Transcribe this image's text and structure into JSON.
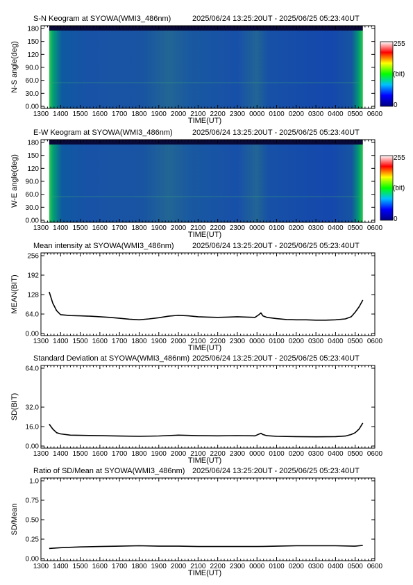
{
  "xaxis": {
    "label": "TIME(UT)",
    "ticks": [
      "1300",
      "1400",
      "1500",
      "1600",
      "1700",
      "1800",
      "1900",
      "2000",
      "2100",
      "2200",
      "2300",
      "0000",
      "0100",
      "0200",
      "0300",
      "0400",
      "0500",
      "0600"
    ]
  },
  "colorbar": {
    "max_label": "255",
    "min_label": "0",
    "unit": "(bit)"
  },
  "panels": [
    {
      "title": "S-N Keogram at SYOWA(WMI3_486nm)",
      "time_range": "2025/06/24 13:25:20UT - 2025/06/25 05:23:40UT",
      "ylabel": "N-S angle(deg)",
      "yticks": [
        "0.00",
        "30.0",
        "60.0",
        "90.0",
        "120",
        "150",
        "180"
      ]
    },
    {
      "title": "E-W Keogram at SYOWA(WMI3_486nm)",
      "time_range": "2025/06/24 13:25:20UT - 2025/06/25 05:23:40UT",
      "ylabel": "W-E angle(deg)",
      "yticks": [
        "0.00",
        "30.0",
        "60.0",
        "90.0",
        "120",
        "150",
        "180"
      ]
    },
    {
      "title": "Mean intensity at SYOWA(WMI3_486nm)",
      "time_range": "2025/06/24 13:25:20UT - 2025/06/25 05:23:40UT",
      "ylabel": "MEAN(BIT)",
      "yticks": [
        "0.00",
        "64.0",
        "128",
        "192",
        "256"
      ]
    },
    {
      "title": "Standard Deviation at SYOWA(WMI3_486nm)",
      "time_range": "2025/06/24 13:25:20UT - 2025/06/25 05:23:40UT",
      "ylabel": "SD(BIT)",
      "yticks": [
        "0.00",
        "16.0",
        "32.0",
        "64.0"
      ]
    },
    {
      "title": "Ratio of SD/Mean at SYOWA(WMI3_486nm)",
      "time_range": "2025/06/24 13:25:20UT - 2025/06/25 05:23:40UT",
      "ylabel": "SD/Mean",
      "yticks": [
        "0.00",
        "0.25",
        "0.50",
        "0.75",
        "1.0"
      ]
    }
  ],
  "chart_data": [
    {
      "type": "heatmap",
      "title": "S-N Keogram at SYOWA(WMI3_486nm)",
      "xlabel": "TIME(UT)",
      "ylabel": "N-S angle(deg)",
      "xlim": [
        13.0,
        30.0
      ],
      "ylim": [
        0,
        180
      ],
      "data_start": 13.42,
      "data_end": 29.39,
      "colorscale": [
        "#000080",
        "#0000ff",
        "#00c0ff",
        "#00ff00",
        "#ffff00",
        "#ff0000",
        "#ffffff"
      ],
      "zlim": [
        0,
        255
      ]
    },
    {
      "type": "heatmap",
      "title": "E-W Keogram at SYOWA(WMI3_486nm)",
      "xlabel": "TIME(UT)",
      "ylabel": "W-E angle(deg)",
      "xlim": [
        13.0,
        30.0
      ],
      "ylim": [
        0,
        180
      ],
      "data_start": 13.42,
      "data_end": 29.39,
      "colorscale": [
        "#000080",
        "#0000ff",
        "#00c0ff",
        "#00ff00",
        "#ffff00",
        "#ff0000",
        "#ffffff"
      ],
      "zlim": [
        0,
        255
      ]
    },
    {
      "type": "line",
      "title": "Mean intensity at SYOWA(WMI3_486nm)",
      "xlabel": "TIME(UT)",
      "ylabel": "MEAN(BIT)",
      "xlim": [
        13.0,
        30.0
      ],
      "ylim": [
        0,
        256
      ],
      "x": [
        13.42,
        13.6,
        13.8,
        14.0,
        14.5,
        15.0,
        15.5,
        16.0,
        16.5,
        17.0,
        17.5,
        18.0,
        18.5,
        19.0,
        19.5,
        20.0,
        20.5,
        21.0,
        21.5,
        22.0,
        22.5,
        23.0,
        23.5,
        23.9,
        24.1,
        24.2,
        24.3,
        24.5,
        25.0,
        25.5,
        26.0,
        26.5,
        27.0,
        27.5,
        28.0,
        28.5,
        28.8,
        29.0,
        29.2,
        29.39
      ],
      "y": [
        137,
        100,
        75,
        62,
        59,
        58,
        57,
        55,
        53,
        50,
        47,
        45,
        48,
        52,
        57,
        60,
        58,
        55,
        54,
        53,
        54,
        55,
        54,
        53,
        62,
        68,
        58,
        53,
        49,
        46,
        45,
        45,
        44,
        44,
        45,
        48,
        55,
        70,
        88,
        110
      ]
    },
    {
      "type": "line",
      "title": "Standard Deviation at SYOWA(WMI3_486nm)",
      "xlabel": "TIME(UT)",
      "ylabel": "SD(BIT)",
      "xlim": [
        13.0,
        30.0
      ],
      "ylim": [
        0,
        64
      ],
      "x": [
        13.42,
        13.6,
        13.8,
        14.0,
        14.5,
        15.0,
        16.0,
        17.0,
        18.0,
        19.0,
        20.0,
        21.0,
        22.0,
        23.0,
        23.9,
        24.2,
        24.3,
        24.5,
        25.0,
        26.0,
        27.0,
        28.0,
        28.5,
        28.8,
        29.0,
        29.2,
        29.39
      ],
      "y": [
        18,
        14,
        11,
        10,
        9,
        8.8,
        8.5,
        8.2,
        8.0,
        8.3,
        9.0,
        8.5,
        8.4,
        8.6,
        8.4,
        10.5,
        9.5,
        8.5,
        8.0,
        7.8,
        7.6,
        7.8,
        8.2,
        9.5,
        11,
        14,
        19
      ]
    },
    {
      "type": "line",
      "title": "Ratio of SD/Mean at SYOWA(WMI3_486nm)",
      "xlabel": "TIME(UT)",
      "ylabel": "SD/Mean",
      "xlim": [
        13.0,
        30.0
      ],
      "ylim": [
        0,
        1
      ],
      "x": [
        13.42,
        14.0,
        15.0,
        16.0,
        17.0,
        18.0,
        19.0,
        20.0,
        21.0,
        22.0,
        23.0,
        24.0,
        25.0,
        26.0,
        27.0,
        28.0,
        29.0,
        29.39
      ],
      "y": [
        0.13,
        0.14,
        0.15,
        0.155,
        0.16,
        0.165,
        0.16,
        0.16,
        0.155,
        0.155,
        0.155,
        0.155,
        0.16,
        0.165,
        0.165,
        0.165,
        0.16,
        0.17
      ]
    }
  ]
}
